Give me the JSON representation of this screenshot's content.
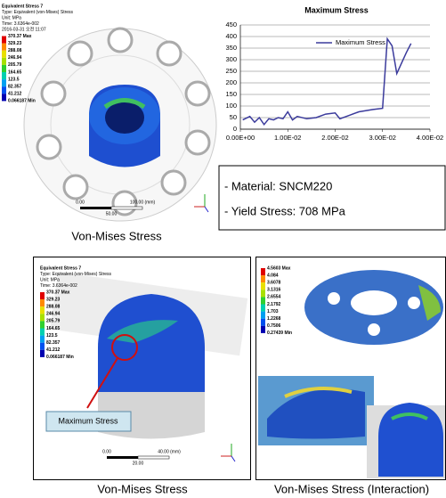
{
  "chart_data": {
    "type": "line",
    "title": "Maximum Stress",
    "x": [
      0.0005,
      0.002,
      0.003,
      0.004,
      0.005,
      0.006,
      0.007,
      0.008,
      0.009,
      0.01,
      0.011,
      0.012,
      0.014,
      0.016,
      0.018,
      0.02,
      0.021,
      0.023,
      0.025,
      0.028,
      0.03,
      0.031,
      0.032,
      0.033,
      0.035,
      0.036
    ],
    "series": [
      {
        "name": "Maximum Stress",
        "color": "#3b3b9c",
        "values": [
          40,
          55,
          30,
          50,
          20,
          45,
          40,
          50,
          45,
          75,
          40,
          55,
          45,
          50,
          65,
          70,
          45,
          60,
          75,
          85,
          90,
          390,
          360,
          240,
          330,
          370
        ]
      }
    ],
    "xlim": [
      0,
      0.04
    ],
    "ylim": [
      0,
      450
    ],
    "xticks": [
      {
        "value": 0,
        "label": "0.00E+00"
      },
      {
        "value": 0.01,
        "label": "1.00E-02"
      },
      {
        "value": 0.02,
        "label": "2.00E-02"
      },
      {
        "value": 0.03,
        "label": "3.00E-02"
      },
      {
        "value": 0.04,
        "label": "4.00E-02"
      }
    ],
    "yticks": [
      0,
      50,
      100,
      150,
      200,
      250,
      300,
      350,
      400,
      450
    ],
    "grid": true,
    "legend": "top-right"
  },
  "panels": [
    {
      "legend": {
        "lines": [
          "Equivalent Stress 7",
          "Type: Equivalent (von-Mises) Stress",
          "Unit: MPa",
          "Time: 3.6364e-002",
          "2016-03-31 오전 11:07"
        ],
        "levels": [
          "370.37 Max",
          "329.23",
          "288.08",
          "246.94",
          "205.79",
          "164.65",
          "123.5",
          "82.357",
          "41.212",
          "0.066187 Min"
        ]
      },
      "scale": [
        "0.00",
        "100.00 (mm)",
        "50.00"
      ],
      "caption": "Von-Mises Stress"
    },
    {
      "legend": {
        "lines": [
          "Equivalent Stress 7",
          "Type: Equivalent (von-Mises) Stress",
          "Unit: MPa",
          "Time: 3.6364e-002"
        ],
        "levels": [
          "370.37 Max",
          "329.23",
          "288.08",
          "246.94",
          "205.79",
          "164.65",
          "123.5",
          "82.357",
          "41.212",
          "0.066187 Min"
        ]
      },
      "scale": [
        "0.00",
        "40.00 (mm)",
        "20.00"
      ],
      "caption": "Von-Mises Stress",
      "callout": "Maximum Stress"
    },
    {
      "legend": {
        "lines": [],
        "levels": [
          "4.5603 Max",
          "4.084",
          "3.6078",
          "3.1316",
          "2.6554",
          "2.1792",
          "1.703",
          "1.2268",
          "0.7506",
          "0.27439 Min"
        ]
      },
      "caption": "Von-Mises Stress (Interaction)"
    }
  ],
  "info_box": {
    "lines": [
      "- Material: SNCM220",
      "- Yield Stress: 708 MPa"
    ]
  }
}
